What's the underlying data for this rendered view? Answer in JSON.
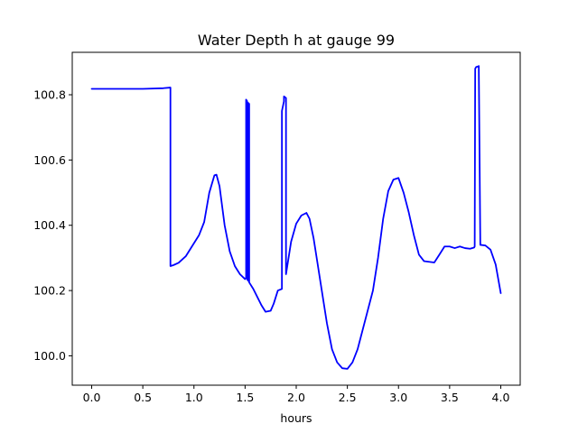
{
  "chart_data": {
    "type": "line",
    "title": "Water Depth h at gauge 99",
    "xlabel": "hours",
    "ylabel": "",
    "xlim": [
      -0.19,
      4.19
    ],
    "ylim": [
      99.91,
      100.93
    ],
    "xticks": [
      0.0,
      0.5,
      1.0,
      1.5,
      2.0,
      2.5,
      3.0,
      3.5,
      4.0
    ],
    "xtick_labels": [
      "0.0",
      "0.5",
      "1.0",
      "1.5",
      "2.0",
      "2.5",
      "3.0",
      "3.5",
      "4.0"
    ],
    "yticks": [
      100.0,
      100.2,
      100.4,
      100.6,
      100.8
    ],
    "ytick_labels": [
      "100.0",
      "100.2",
      "100.4",
      "100.6",
      "100.8"
    ],
    "grid": false,
    "series": [
      {
        "color": "#0000ff",
        "x": [
          0.0,
          0.5,
          0.7,
          0.77,
          0.77,
          0.8,
          0.85,
          0.92,
          1.0,
          1.05,
          1.1,
          1.15,
          1.2,
          1.22,
          1.25,
          1.3,
          1.35,
          1.4,
          1.45,
          1.5,
          1.51,
          1.51,
          1.52,
          1.52,
          1.53,
          1.53,
          1.54,
          1.54,
          1.58,
          1.62,
          1.66,
          1.7,
          1.75,
          1.78,
          1.82,
          1.86,
          1.86,
          1.88,
          1.88,
          1.9,
          1.9,
          1.95,
          2.0,
          2.05,
          2.1,
          2.13,
          2.17,
          2.2,
          2.25,
          2.3,
          2.35,
          2.4,
          2.45,
          2.5,
          2.55,
          2.6,
          2.65,
          2.7,
          2.75,
          2.8,
          2.85,
          2.9,
          2.95,
          3.0,
          3.05,
          3.1,
          3.15,
          3.2,
          3.25,
          3.3,
          3.35,
          3.4,
          3.45,
          3.5,
          3.55,
          3.6,
          3.65,
          3.7,
          3.74,
          3.745,
          3.75,
          3.76,
          3.78,
          3.785,
          3.8,
          3.85,
          3.9,
          3.95,
          4.0
        ],
        "y": [
          100.818,
          100.818,
          100.82,
          100.822,
          100.275,
          100.278,
          100.285,
          100.305,
          100.345,
          100.37,
          100.41,
          100.5,
          100.553,
          100.555,
          100.52,
          100.4,
          100.32,
          100.275,
          100.25,
          100.235,
          100.24,
          100.785,
          100.78,
          100.235,
          100.23,
          100.775,
          100.772,
          100.225,
          100.205,
          100.18,
          100.155,
          100.135,
          100.138,
          100.16,
          100.2,
          100.205,
          100.75,
          100.78,
          100.795,
          100.79,
          100.25,
          100.35,
          100.405,
          100.43,
          100.438,
          100.42,
          100.36,
          100.3,
          100.2,
          100.1,
          100.02,
          99.98,
          99.962,
          99.96,
          99.98,
          100.02,
          100.08,
          100.14,
          100.2,
          100.3,
          100.42,
          100.505,
          100.54,
          100.545,
          100.5,
          100.44,
          100.37,
          100.31,
          100.29,
          100.288,
          100.286,
          100.31,
          100.335,
          100.335,
          100.33,
          100.335,
          100.33,
          100.328,
          100.332,
          100.335,
          100.88,
          100.885,
          100.887,
          100.888,
          100.34,
          100.338,
          100.325,
          100.28,
          100.192
        ]
      }
    ]
  }
}
